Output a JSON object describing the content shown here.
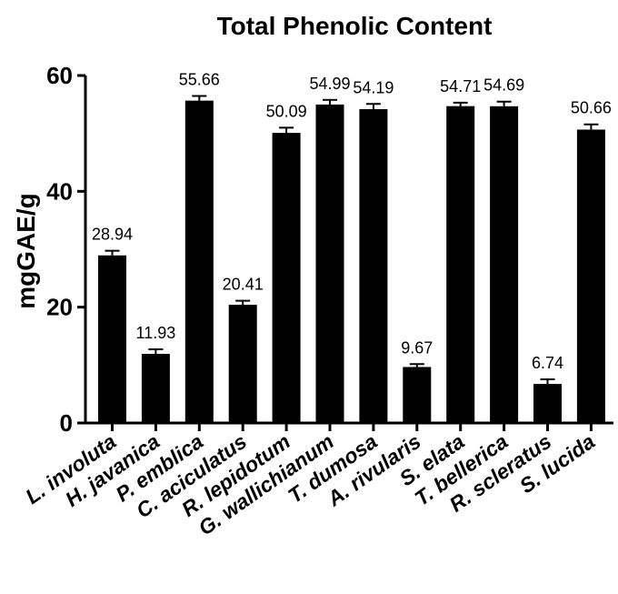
{
  "chart_data": {
    "type": "bar",
    "title": "Total Phenolic Content",
    "ylabel": "mgGAE/g",
    "xlabel": "",
    "ylim": [
      0,
      60
    ],
    "yticks": [
      0,
      20,
      40,
      60
    ],
    "grid": false,
    "legend": "none",
    "bar_color": "#000000",
    "categories": [
      "L. involuta",
      "H. javanica",
      "P. emblica",
      "C. aciculatus",
      "R. lepidotum",
      "G. wallichianum",
      "T. dumosa",
      "A. rivularis",
      "S. elata",
      "T. bellerica",
      "R. scleratus",
      "S. lucida"
    ],
    "values": [
      28.94,
      11.93,
      55.66,
      20.41,
      50.09,
      54.99,
      54.19,
      9.67,
      54.71,
      54.69,
      6.74,
      50.66
    ],
    "value_labels": [
      "28.94",
      "11.93",
      "55.66",
      "20.41",
      "50.09",
      "54.99",
      "54.19",
      "9.67",
      "54.71",
      "54.69",
      "6.74",
      "50.66"
    ],
    "errors": [
      0.8,
      0.8,
      0.8,
      0.7,
      0.9,
      0.8,
      0.9,
      0.5,
      0.6,
      0.8,
      0.8,
      0.9
    ]
  }
}
